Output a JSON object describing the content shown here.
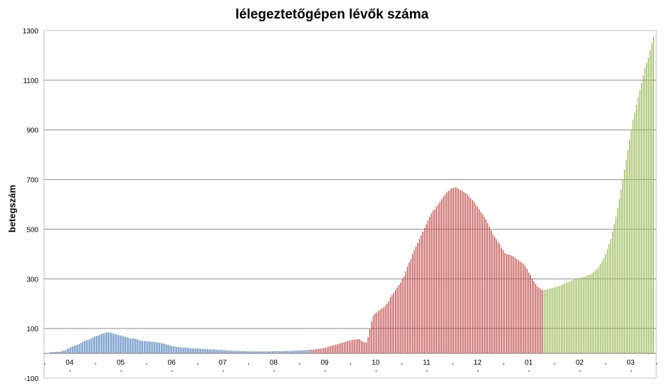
{
  "chart_data": {
    "type": "bar",
    "title": "lélegeztetőgépen lévők száma",
    "xlabel": "",
    "ylabel": "betegszám",
    "ylim": [
      -100,
      1300
    ],
    "yticks": [
      1300,
      1100,
      900,
      700,
      500,
      300,
      100,
      -100
    ],
    "grid": true,
    "month_ticks": [
      "04",
      "05",
      "06",
      "07",
      "08",
      "09",
      "10",
      "11",
      "12",
      "01",
      "02",
      "03"
    ],
    "colors": {
      "wave1": "#4f81bd",
      "wave2": "#c0504d",
      "wave3": "#9bbb59"
    },
    "series": [
      {
        "color_key": "wave1",
        "values": [
          4,
          5,
          6,
          6,
          7,
          6,
          6,
          12,
          10,
          13,
          19,
          22,
          25,
          28,
          30,
          33,
          35,
          38,
          42,
          46,
          50,
          52,
          54,
          56,
          60,
          64,
          68,
          70,
          72,
          74,
          78,
          80,
          82,
          84,
          85,
          84,
          82,
          80,
          78,
          76,
          74,
          72,
          70,
          68,
          66,
          64,
          62,
          60,
          60,
          60,
          58,
          56,
          54,
          52,
          50,
          50,
          50,
          48,
          48,
          47,
          46,
          46,
          45,
          44,
          43,
          42,
          40,
          38,
          36,
          34,
          32,
          30,
          28,
          27,
          26,
          25,
          24,
          24,
          23,
          23,
          22,
          22,
          21,
          21,
          20,
          20,
          20,
          19,
          19,
          18,
          18,
          17,
          17,
          16,
          16,
          16,
          15,
          15,
          14,
          14,
          14,
          13,
          13,
          12,
          12,
          12,
          11,
          11,
          10,
          10,
          10,
          9,
          9,
          9,
          9,
          8,
          8,
          8,
          8,
          8,
          8,
          8,
          8,
          8,
          8,
          8,
          8,
          8,
          8,
          8,
          9,
          9,
          9,
          9,
          9,
          9,
          9,
          10,
          10,
          10,
          10,
          10,
          11,
          11,
          11,
          11,
          12,
          12,
          12,
          13,
          13,
          14
        ]
      },
      {
        "color_key": "wave2",
        "values": [
          14,
          15,
          15,
          16,
          17,
          18,
          19,
          20,
          22,
          23,
          25,
          27,
          29,
          31,
          33,
          35,
          37,
          39,
          41,
          43,
          45,
          47,
          49,
          51,
          53,
          55,
          55,
          56,
          58,
          57,
          52,
          47,
          45,
          44,
          65,
          98,
          128,
          152,
          160,
          165,
          170,
          175,
          180,
          185,
          190,
          200,
          210,
          225,
          235,
          245,
          255,
          265,
          275,
          285,
          300,
          310,
          330,
          350,
          365,
          380,
          400,
          415,
          430,
          445,
          460,
          475,
          490,
          505,
          520,
          535,
          550,
          565,
          575,
          580,
          590,
          600,
          610,
          620,
          630,
          640,
          648,
          655,
          660,
          665,
          667,
          668,
          666,
          662,
          658,
          655,
          650,
          645,
          640,
          632,
          625,
          618,
          610,
          600,
          590,
          580,
          570,
          560,
          550,
          540,
          525,
          510,
          495,
          480,
          470,
          460,
          450,
          440,
          425,
          415,
          405,
          400,
          398,
          396,
          394,
          390,
          385,
          380,
          375,
          370,
          365,
          360,
          350,
          340,
          325,
          315,
          300,
          290,
          280,
          270,
          265,
          260,
          255
        ]
      },
      {
        "color_key": "wave3",
        "values": [
          255,
          256,
          258,
          260,
          262,
          264,
          266,
          268,
          270,
          272,
          275,
          278,
          281,
          284,
          287,
          290,
          293,
          296,
          299,
          300,
          302,
          304,
          306,
          308,
          310,
          312,
          315,
          318,
          322,
          327,
          333,
          340,
          350,
          360,
          372,
          385,
          400,
          420,
          440,
          460,
          490,
          520,
          550,
          585,
          620,
          660,
          700,
          740,
          780,
          820,
          860,
          900,
          940,
          970,
          1000,
          1030,
          1060,
          1090,
          1120,
          1150,
          1170,
          1190,
          1220,
          1250,
          1275
        ]
      }
    ]
  }
}
